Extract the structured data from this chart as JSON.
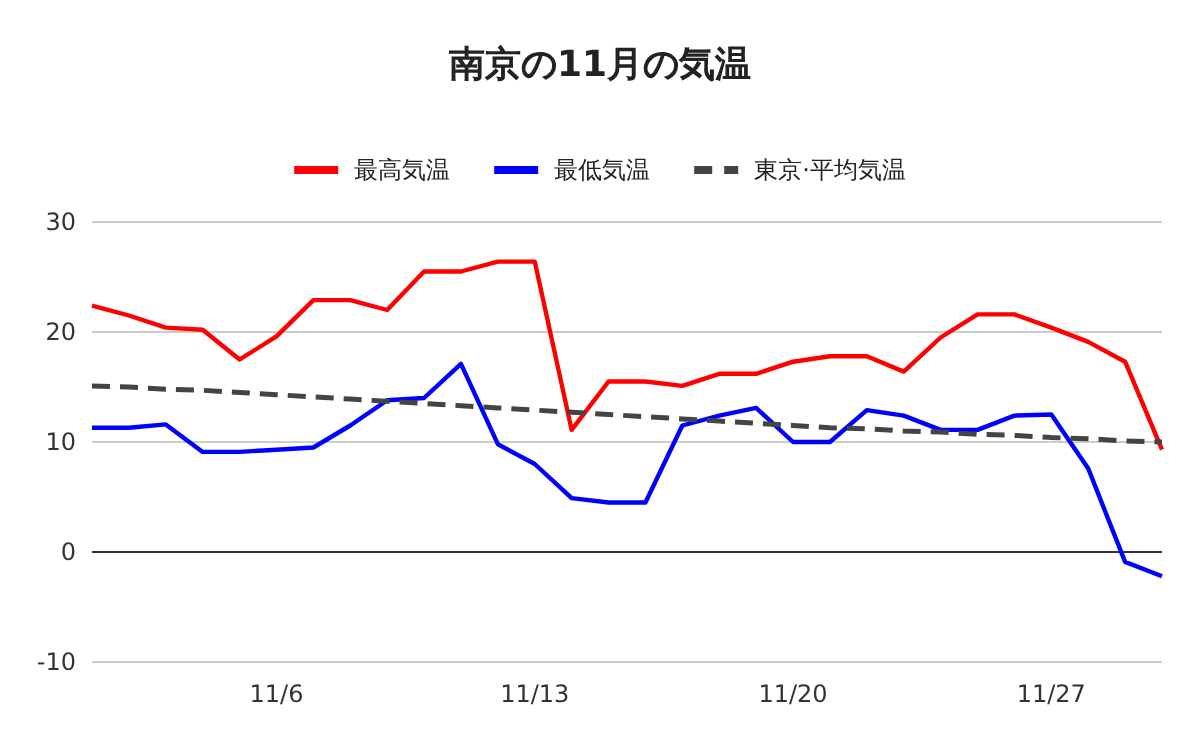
{
  "chart_data": {
    "type": "line",
    "title": "南京の11月の気温",
    "categories": [
      null,
      null,
      null,
      null,
      null,
      "11/6",
      null,
      null,
      null,
      null,
      null,
      null,
      "11/13",
      null,
      null,
      null,
      null,
      null,
      null,
      "11/20",
      null,
      null,
      null,
      null,
      null,
      null,
      "11/27",
      null,
      null,
      null
    ],
    "series": [
      {
        "name": "最高気温",
        "color": "#ff0000",
        "line_style": "solid",
        "values": [
          22.4,
          21.5,
          20.4,
          20.2,
          17.5,
          19.6,
          22.9,
          22.9,
          22.0,
          25.5,
          25.5,
          26.4,
          26.4,
          11.1,
          15.5,
          15.5,
          15.1,
          16.2,
          16.2,
          17.3,
          17.8,
          17.8,
          16.4,
          19.5,
          21.6,
          21.6,
          20.4,
          19.1,
          17.3,
          9.3
        ]
      },
      {
        "name": "最低気温",
        "color": "#0000ff",
        "line_style": "solid",
        "values": [
          11.3,
          11.3,
          11.6,
          9.1,
          9.1,
          9.3,
          9.5,
          11.5,
          13.8,
          14.0,
          17.1,
          9.8,
          8.0,
          4.9,
          4.5,
          4.5,
          11.5,
          12.4,
          13.1,
          10.0,
          10.0,
          12.9,
          12.4,
          11.1,
          11.1,
          12.4,
          12.5,
          7.6,
          -0.9,
          -2.2
        ]
      },
      {
        "name": "東京·平均気温",
        "color": "#444444",
        "line_style": "dashed",
        "values": [
          15.1,
          15.0,
          14.8,
          14.7,
          14.5,
          14.3,
          14.1,
          13.9,
          13.7,
          13.5,
          13.3,
          13.1,
          12.9,
          12.7,
          12.5,
          12.3,
          12.1,
          11.9,
          11.7,
          11.5,
          11.3,
          11.2,
          11.0,
          10.9,
          10.7,
          10.6,
          10.4,
          10.3,
          10.1,
          10.0
        ]
      }
    ],
    "ylim": [
      -10,
      30
    ],
    "yticks": [
      -10,
      0,
      10,
      20,
      30
    ],
    "grid": "y",
    "legend": "top",
    "marker": "none"
  }
}
